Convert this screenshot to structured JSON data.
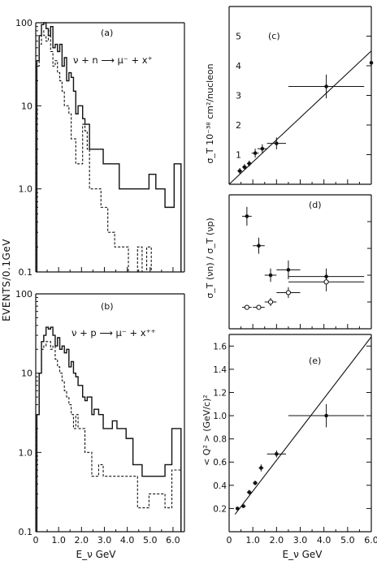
{
  "chart_data": [
    {
      "panel": "(a)",
      "type": "histogram",
      "reaction": "ν + n ⟶ μ⁻ + x⁺",
      "ylabel": "EVENTS/0.1GeV",
      "ylog": true,
      "ylim": [
        0.1,
        100
      ],
      "yticks": [
        "100",
        "10",
        "1.0",
        "0.1"
      ],
      "xlim": [
        0,
        6.5
      ],
      "series": [
        {
          "style": "solid",
          "x": [
            0.1,
            0.2,
            0.3,
            0.4,
            0.5,
            0.6,
            0.7,
            0.8,
            0.9,
            1.0,
            1.1,
            1.2,
            1.3,
            1.4,
            1.5,
            1.6,
            1.7,
            1.8,
            1.9,
            2.0,
            2.1,
            2.2,
            2.3,
            2.4,
            2.5,
            2.6,
            2.7,
            2.8,
            2.9,
            3.0,
            3.1,
            3.2,
            3.3,
            3.4,
            3.5,
            3.6,
            3.7,
            3.8,
            3.9,
            4.0,
            4.1,
            4.2,
            4.3,
            4.4,
            4.5,
            4.6,
            4.7,
            4.8,
            4.9,
            5.0,
            5.1,
            5.2,
            5.3,
            5.4,
            5.5,
            5.6,
            5.7,
            5.8,
            5.9,
            6.0,
            6.1,
            6.2,
            6.3
          ],
          "values": [
            35,
            70,
            95,
            100,
            85,
            70,
            90,
            50,
            55,
            45,
            55,
            30,
            38,
            20,
            25,
            22,
            15,
            8,
            10,
            10,
            7,
            6,
            6,
            3,
            3,
            3,
            3,
            3,
            3,
            2,
            2,
            2,
            2,
            2,
            2,
            2,
            1,
            1,
            1,
            1,
            1,
            1,
            1,
            1,
            1,
            1,
            1,
            1,
            1,
            1.5,
            1.5,
            1.5,
            1,
            1,
            1,
            1,
            0.6,
            0.6,
            0.6,
            0.6,
            2,
            2,
            2
          ]
        },
        {
          "style": "dashed",
          "x": [
            0.1,
            0.2,
            0.3,
            0.4,
            0.5,
            0.6,
            0.7,
            0.8,
            0.9,
            1.0,
            1.1,
            1.2,
            1.3,
            1.4,
            1.5,
            1.6,
            1.7,
            1.8,
            1.9,
            2.0,
            2.1,
            2.2,
            2.3,
            2.4,
            2.5,
            2.6,
            2.7,
            2.8,
            2.9,
            3.0,
            3.1,
            3.2,
            3.3,
            3.4,
            3.5,
            3.6,
            3.7,
            3.8,
            3.9,
            4.0,
            4.1,
            4.2,
            4.3,
            4.4,
            4.5,
            4.6,
            4.7,
            4.8,
            4.9,
            5.0
          ],
          "values": [
            30,
            55,
            80,
            70,
            60,
            80,
            45,
            30,
            35,
            25,
            20,
            15,
            10,
            10,
            8,
            4,
            4,
            2,
            2,
            2,
            6,
            5,
            3,
            1,
            1,
            1,
            1,
            1,
            0.6,
            0.6,
            0.6,
            0.3,
            0.3,
            0.3,
            0.2,
            0.2,
            0.2,
            0.2,
            0.2,
            0.2,
            0.1,
            0.1,
            0.1,
            0.1,
            0.2,
            0.2,
            0.1,
            0.1,
            0.2,
            0.2
          ]
        }
      ]
    },
    {
      "panel": "(b)",
      "type": "histogram",
      "reaction": "ν + p ⟶ μ⁻ + x⁺⁺",
      "ylog": true,
      "ylim": [
        0.1,
        100
      ],
      "yticks": [
        "100",
        "10",
        "1.0",
        "0.1"
      ],
      "xlim": [
        0,
        6.5
      ],
      "xticks": [
        "0",
        "1.0",
        "2.0",
        "3.0",
        "4.0",
        "5.0",
        "6.0"
      ],
      "xlabel": "E_ν GeV",
      "series": [
        {
          "style": "solid",
          "x": [
            0.1,
            0.2,
            0.3,
            0.4,
            0.5,
            0.6,
            0.7,
            0.8,
            0.9,
            1.0,
            1.1,
            1.2,
            1.3,
            1.4,
            1.5,
            1.6,
            1.7,
            1.8,
            1.9,
            2.0,
            2.1,
            2.2,
            2.3,
            2.4,
            2.5,
            2.6,
            2.7,
            2.8,
            2.9,
            3.0,
            3.1,
            3.2,
            3.3,
            3.4,
            3.5,
            3.6,
            3.7,
            3.8,
            3.9,
            4.0,
            4.1,
            4.2,
            4.3,
            4.4,
            4.5,
            4.6,
            4.7,
            4.8,
            4.9,
            5.0,
            5.1,
            5.2,
            5.3,
            5.4,
            5.5,
            5.6,
            5.7,
            5.8,
            5.9,
            6.0,
            6.1,
            6.2,
            6.3
          ],
          "values": [
            3,
            10,
            25,
            30,
            38,
            36,
            38,
            30,
            22,
            28,
            20,
            22,
            18,
            20,
            12,
            14,
            10,
            9,
            7,
            7,
            5,
            4.5,
            5,
            5,
            3,
            3.5,
            3.5,
            3,
            3,
            2,
            2,
            2,
            2,
            2.5,
            2.5,
            2,
            2,
            2,
            2,
            1.5,
            1.5,
            1.5,
            0.7,
            0.7,
            0.7,
            0.7,
            0.5,
            0.5,
            0.5,
            0.5,
            0.5,
            0.5,
            0.5,
            0.5,
            0.5,
            0.5,
            0.7,
            0.7,
            0.7,
            2,
            2,
            2,
            2
          ]
        },
        {
          "style": "dashed",
          "x": [
            0.1,
            0.2,
            0.3,
            0.4,
            0.5,
            0.6,
            0.7,
            0.8,
            0.9,
            1.0,
            1.1,
            1.2,
            1.3,
            1.4,
            1.5,
            1.6,
            1.7,
            1.8,
            1.9,
            2.0,
            2.1,
            2.2,
            2.3,
            2.4,
            2.5,
            2.6,
            2.7,
            2.8,
            2.9,
            3.0,
            3.1,
            3.2,
            3.3,
            3.4,
            3.5,
            3.6,
            3.7,
            3.8,
            3.9,
            4.0,
            4.1,
            4.2,
            4.3,
            4.4,
            4.5,
            4.6,
            4.7,
            4.8,
            4.9,
            5.0,
            5.1,
            5.2,
            5.3,
            5.4,
            5.5,
            5.6,
            5.7,
            5.8,
            5.9,
            6.0,
            6.1,
            6.2,
            6.3
          ],
          "values": [
            3,
            10,
            20,
            22,
            25,
            25,
            20,
            22,
            15,
            12,
            10,
            8,
            6,
            5,
            4,
            3,
            2,
            3,
            2,
            2,
            2,
            1,
            1,
            1,
            0.5,
            0.5,
            0.5,
            0.7,
            0.7,
            0.5,
            0.5,
            0.5,
            0.5,
            0.5,
            0.5,
            0.5,
            0.5,
            0.5,
            0.5,
            0.5,
            0.5,
            0.5,
            0.5,
            0.5,
            0.2,
            0.2,
            0.2,
            0.2,
            0.2,
            0.3,
            0.3,
            0.3,
            0.3,
            0.3,
            0.3,
            0.3,
            0.2,
            0.2,
            0.2,
            0.6,
            0.6,
            0.6,
            0.6
          ]
        }
      ]
    },
    {
      "panel": "(c)",
      "type": "scatter",
      "ylabel": "σ_T 10⁻³⁸ cm²/nucleon",
      "xlim": [
        0,
        6.0
      ],
      "ylim": [
        0,
        6
      ],
      "yticks": [
        "1",
        "2",
        "3",
        "4",
        "5"
      ],
      "points": [
        {
          "x": 0.45,
          "y": 0.45,
          "xerr": 0.1,
          "yerr": 0.1
        },
        {
          "x": 0.65,
          "y": 0.58,
          "xerr": 0.1,
          "yerr": 0.1
        },
        {
          "x": 0.85,
          "y": 0.7,
          "xerr": 0.1,
          "yerr": 0.1
        },
        {
          "x": 1.1,
          "y": 1.05,
          "xerr": 0.15,
          "yerr": 0.15
        },
        {
          "x": 1.4,
          "y": 1.2,
          "xerr": 0.2,
          "yerr": 0.15
        },
        {
          "x": 2.0,
          "y": 1.38,
          "xerr": 0.4,
          "yerr": 0.2
        },
        {
          "x": 4.1,
          "y": 3.3,
          "xerr": 1.6,
          "yerr": 0.4
        },
        {
          "x": 6.0,
          "y": 4.1,
          "xerr": 0,
          "yerr": 0
        }
      ],
      "fit": {
        "x": [
          0,
          6.0
        ],
        "y": [
          0,
          4.5
        ]
      }
    },
    {
      "panel": "(d)",
      "type": "scatter",
      "ylabel": "σ_T (νn) / σ_T (νp)",
      "xlim": [
        0,
        6.0
      ],
      "ylim": [
        0,
        5
      ],
      "series": [
        {
          "marker": "filled",
          "points": [
            {
              "x": 0.75,
              "y": 4.2,
              "xerr": 0.2,
              "yerr": 0.35
            },
            {
              "x": 1.25,
              "y": 3.1,
              "xerr": 0.25,
              "yerr": 0.3
            },
            {
              "x": 1.75,
              "y": 2.0,
              "xerr": 0.25,
              "yerr": 0.25
            },
            {
              "x": 2.5,
              "y": 2.2,
              "xerr": 0.5,
              "yerr": 0.35
            },
            {
              "x": 4.1,
              "y": 1.95,
              "xerr": 1.6,
              "yerr": 0.3
            }
          ]
        },
        {
          "marker": "open",
          "points": [
            {
              "x": 0.75,
              "y": 0.8,
              "xerr": 0.2,
              "yerr": 0.05
            },
            {
              "x": 1.25,
              "y": 0.8,
              "xerr": 0.25,
              "yerr": 0.05
            },
            {
              "x": 1.75,
              "y": 1.0,
              "xerr": 0.25,
              "yerr": 0.15
            },
            {
              "x": 2.5,
              "y": 1.35,
              "xerr": 0.5,
              "yerr": 0.2
            },
            {
              "x": 4.1,
              "y": 1.75,
              "xerr": 1.6,
              "yerr": 0.35
            }
          ]
        }
      ]
    },
    {
      "panel": "(e)",
      "type": "scatter",
      "ylabel": "< Q² > (GeV/c)²",
      "xlabel": "E_ν GeV",
      "xlim": [
        0,
        6.0
      ],
      "ylim": [
        0,
        1.7
      ],
      "yticks": [
        "0.2",
        "0.4",
        "0.6",
        "0.8",
        "1.0",
        "1.2",
        "1.4",
        "1.6"
      ],
      "xticks": [
        "0",
        "1.0",
        "2.0",
        "3.0",
        "4.0",
        "5.0",
        "6.0"
      ],
      "points": [
        {
          "x": 0.35,
          "y": 0.2,
          "xerr": 0.05,
          "yerr": 0.01
        },
        {
          "x": 0.6,
          "y": 0.22,
          "xerr": 0.1,
          "yerr": 0.01
        },
        {
          "x": 0.85,
          "y": 0.34,
          "xerr": 0.1,
          "yerr": 0.02
        },
        {
          "x": 1.1,
          "y": 0.42,
          "xerr": 0.1,
          "yerr": 0.02
        },
        {
          "x": 1.35,
          "y": 0.55,
          "xerr": 0.1,
          "yerr": 0.03
        },
        {
          "x": 2.0,
          "y": 0.67,
          "xerr": 0.4,
          "yerr": 0.03
        },
        {
          "x": 4.1,
          "y": 1.0,
          "xerr": 1.6,
          "yerr": 0.1
        }
      ],
      "fit": {
        "x": [
          0.25,
          6.0
        ],
        "y": [
          0.15,
          1.68
        ]
      }
    }
  ]
}
